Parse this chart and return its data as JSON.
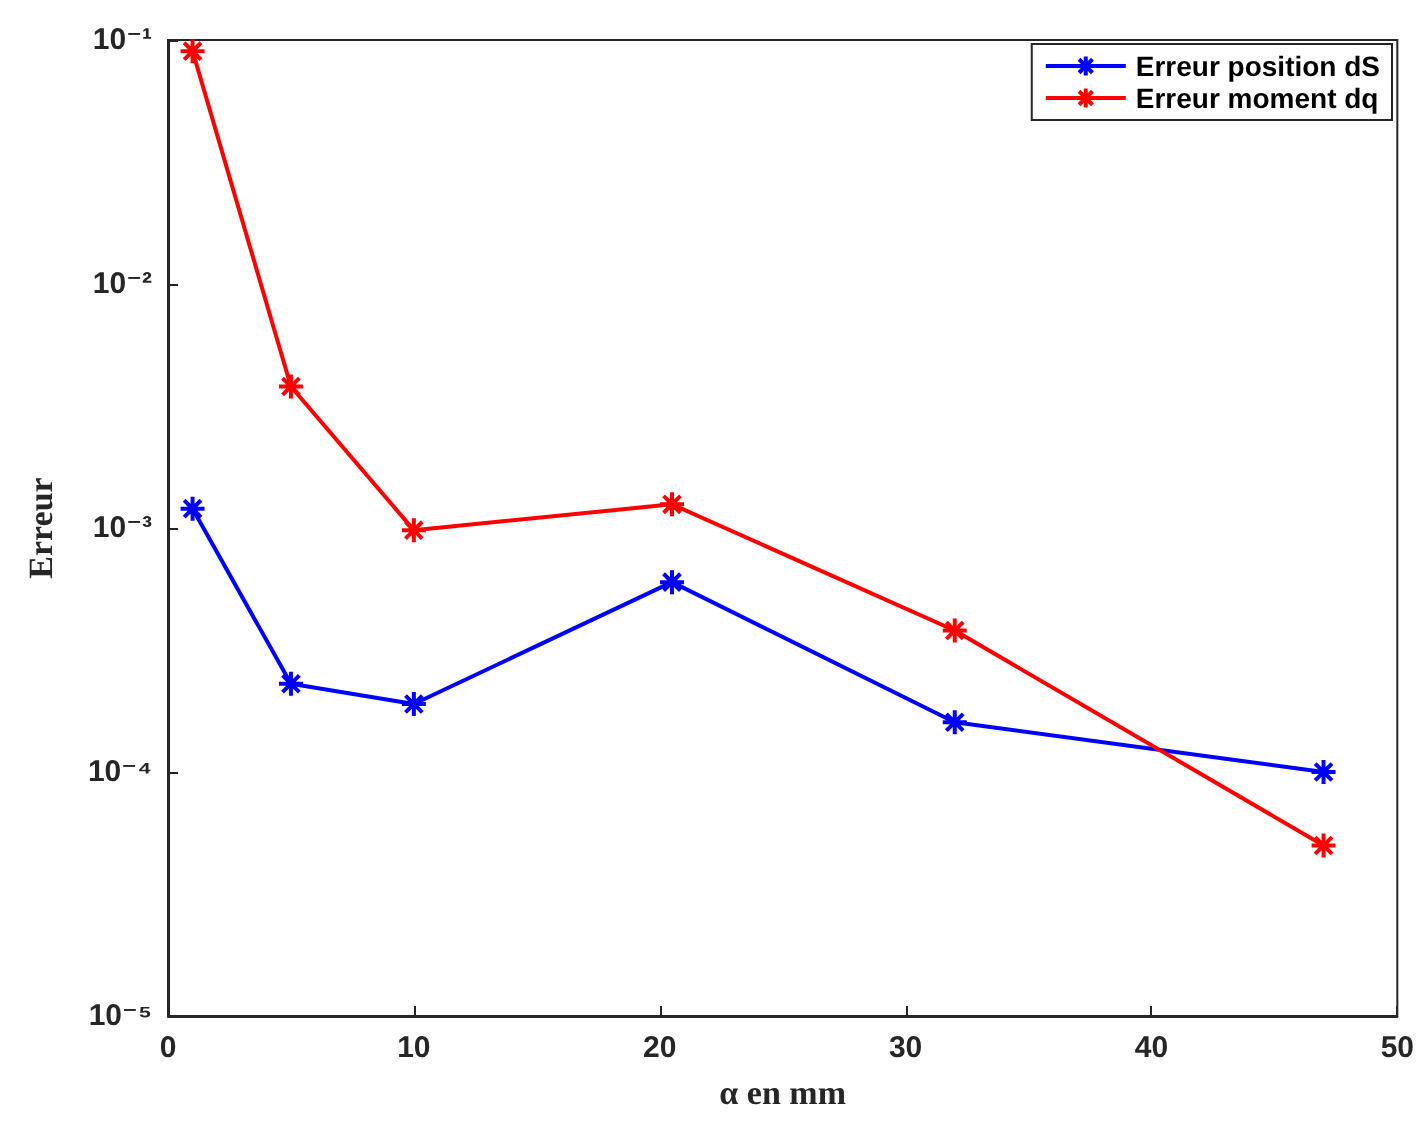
{
  "chart_data": {
    "type": "line",
    "xlabel": "α en mm",
    "ylabel": "Erreur",
    "x": [
      1,
      5,
      10,
      20.5,
      32,
      47
    ],
    "series": [
      {
        "name": "Erreur position dS",
        "color": "#0000ff",
        "values": [
          0.0012,
          0.00023,
          0.00019,
          0.0006,
          0.00016,
          0.0001
        ]
      },
      {
        "name": "Erreur moment dq",
        "color": "#ff0000",
        "values": [
          0.09,
          0.0038,
          0.00098,
          0.00125,
          0.00038,
          5e-05
        ]
      }
    ],
    "xlim": [
      0,
      50
    ],
    "xticks": [
      0,
      10,
      20,
      30,
      40,
      50
    ],
    "ylim": [
      1e-05,
      0.1
    ],
    "yticks": [
      {
        "value": 1e-05,
        "label": "10⁻⁵"
      },
      {
        "value": 0.0001,
        "label": "10⁻⁴"
      },
      {
        "value": 0.001,
        "label": "10⁻³"
      },
      {
        "value": 0.01,
        "label": "10⁻²"
      },
      {
        "value": 0.1,
        "label": "10⁻¹"
      }
    ],
    "log": "y",
    "grid": false,
    "legend": "top right",
    "marker": "cross",
    "line_style": "solid"
  }
}
